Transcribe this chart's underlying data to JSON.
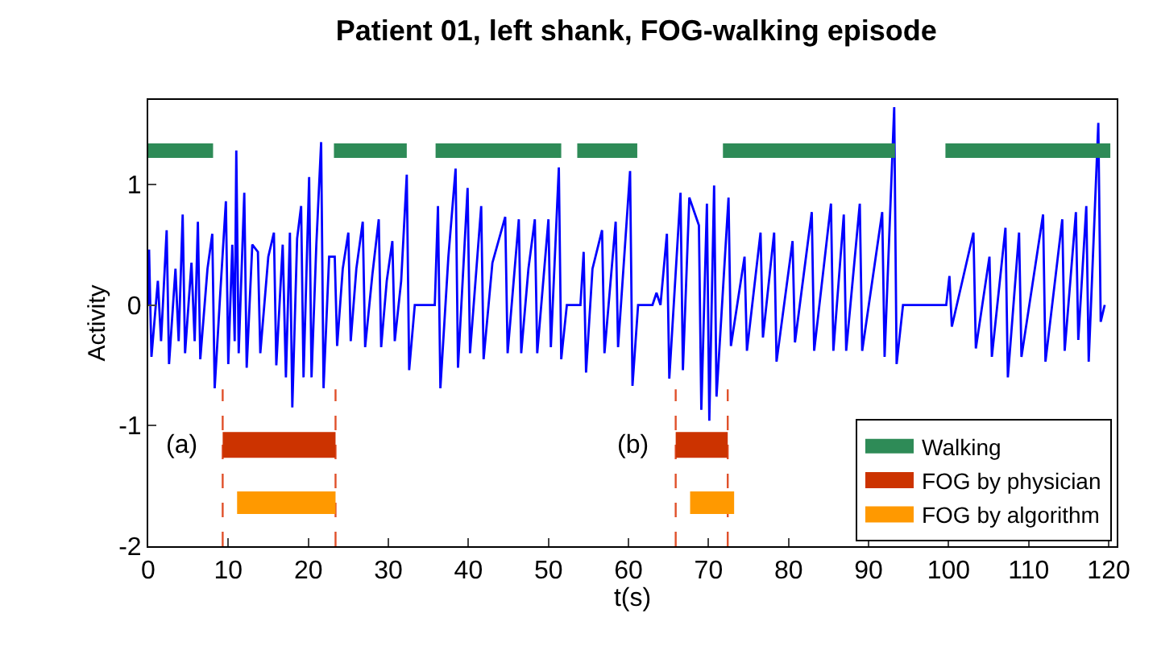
{
  "chart_data": {
    "type": "line",
    "title": "Patient 01, left shank, FOG-walking episode",
    "xlabel": "t(s)",
    "ylabel": "Activity",
    "xlim": [
      0,
      121
    ],
    "xticks": [
      0,
      10,
      20,
      30,
      40,
      50,
      60,
      70,
      80,
      90,
      100,
      110,
      120
    ],
    "ylim": [
      -2,
      1.7
    ],
    "yticks": [
      -2,
      -1,
      0,
      1
    ],
    "legend": "bottom right",
    "marker": "none",
    "annotations": [
      "(a)",
      "(b)"
    ],
    "series": [
      {
        "color": "#0000ff",
        "x": [
          0,
          0.1,
          0.4,
          1.2,
          1.6,
          2.3,
          2.6,
          3.4,
          3.8,
          4.3,
          4.6,
          5.4,
          5.8,
          6.2,
          6.5,
          7.4,
          8.0,
          8.3,
          9.0,
          9.7,
          10.0,
          10.5,
          10.8,
          11.0,
          11.3,
          12.0,
          12.3,
          13.0,
          13.7,
          14.0,
          15.0,
          15.7,
          16.0,
          16.8,
          17.2,
          17.7,
          18.0,
          18.6,
          19.1,
          19.4,
          20.1,
          20.4,
          21.0,
          21.6,
          21.9,
          22.6,
          23.3,
          23.6,
          24.3,
          25.0,
          25.3,
          26.0,
          26.8,
          27.1,
          28.0,
          28.8,
          29.1,
          29.8,
          30.5,
          30.8,
          31.6,
          32.3,
          32.6,
          33.3,
          35.8,
          36.2,
          36.5,
          37.5,
          38.4,
          38.7,
          39.9,
          40.2,
          41.6,
          41.9,
          43.0,
          44.6,
          44.9,
          46.3,
          46.6,
          47.5,
          48.3,
          48.6,
          50.0,
          50.3,
          51.3,
          51.6,
          52.3,
          54.0,
          54.4,
          54.7,
          55.5,
          56.7,
          57.0,
          58.4,
          58.7,
          60.2,
          60.5,
          61.2,
          63.0,
          63.5,
          64.0,
          64.8,
          65.1,
          66.5,
          66.8,
          67.6,
          68.8,
          69.1,
          69.8,
          70.1,
          70.7,
          71.0,
          72.5,
          72.8,
          74.5,
          74.8,
          76.5,
          76.8,
          78.2,
          78.5,
          80.5,
          80.8,
          82.9,
          83.2,
          85.3,
          85.6,
          86.9,
          87.2,
          88.9,
          89.2,
          91.7,
          92.0,
          93.2,
          93.5,
          94.3,
          99.7,
          100.1,
          100.4,
          103.1,
          103.4,
          105.1,
          105.4,
          107.1,
          107.4,
          108.8,
          109.1,
          111.8,
          112.1,
          114.2,
          114.5,
          115.9,
          116.2,
          117.2,
          117.5,
          118.7,
          119.0,
          119.5
        ],
        "values": [
          0,
          0.46,
          -0.43,
          0.2,
          -0.3,
          0.62,
          -0.49,
          0.3,
          -0.3,
          0.75,
          -0.4,
          0.35,
          -0.3,
          0.69,
          -0.45,
          0.3,
          0.59,
          -0.69,
          0.1,
          0.86,
          -0.49,
          0.5,
          -0.3,
          1.28,
          -0.4,
          0.93,
          -0.52,
          0.5,
          0.44,
          -0.4,
          0.4,
          0.6,
          -0.5,
          0.5,
          -0.6,
          0.6,
          -0.85,
          0.55,
          0.82,
          -0.6,
          1.06,
          -0.6,
          0.5,
          1.35,
          -0.69,
          0.4,
          0.4,
          -0.34,
          0.3,
          0.6,
          -0.3,
          0.3,
          0.69,
          -0.35,
          0.25,
          0.71,
          -0.35,
          0.2,
          0.53,
          -0.3,
          0.2,
          1.08,
          -0.54,
          0,
          0,
          0.82,
          -0.69,
          0.4,
          1.13,
          -0.52,
          0.97,
          -0.4,
          0.82,
          -0.45,
          0.35,
          0.73,
          -0.4,
          0.71,
          -0.4,
          0.3,
          0.71,
          -0.4,
          0.71,
          -0.35,
          1.14,
          -0.45,
          0,
          0,
          0.44,
          -0.56,
          0.3,
          0.62,
          -0.4,
          0.69,
          -0.35,
          1.11,
          -0.67,
          0,
          0,
          0.1,
          0,
          0.59,
          -0.61,
          0.93,
          -0.54,
          0.89,
          0.66,
          -0.87,
          0.84,
          -0.96,
          0.99,
          -0.76,
          0.89,
          -0.34,
          0.4,
          -0.38,
          0.6,
          -0.27,
          0.6,
          -0.47,
          0.53,
          -0.31,
          0.77,
          -0.38,
          0.84,
          -0.38,
          0.75,
          -0.38,
          0.84,
          -0.38,
          0.77,
          -0.43,
          1.64,
          -0.49,
          0,
          0,
          0.24,
          -0.18,
          0.6,
          -0.36,
          0.4,
          -0.43,
          0.64,
          -0.6,
          0.6,
          -0.43,
          0.75,
          -0.47,
          0.71,
          -0.38,
          0.77,
          -0.29,
          0.82,
          -0.47,
          1.51,
          -0.14,
          0
        ]
      },
      {
        "color": "#e0502a",
        "line_style": "dashed",
        "x": [
          9.3,
          9.3,
          null,
          23.4,
          23.4,
          null,
          65.9,
          65.9,
          null,
          72.4,
          72.4
        ],
        "values": [
          -2,
          -0.7,
          null,
          -2,
          -0.7,
          null,
          -2,
          -0.7,
          null,
          -2,
          -0.7
        ]
      },
      {
        "name": "Walking",
        "color": "#2e8b57",
        "x": [
          0,
          8.1,
          null,
          23.2,
          32.3,
          null,
          35.9,
          51.6,
          null,
          53.6,
          61.1,
          null,
          71.8,
          93.3,
          null,
          99.6,
          120.2
        ],
        "values": [
          1.28,
          1.28,
          null,
          1.28,
          1.28,
          null,
          1.28,
          1.28,
          null,
          1.28,
          1.28,
          null,
          1.28,
          1.28,
          null,
          1.28,
          1.28
        ]
      },
      {
        "name": "FOG by physician",
        "color": "#cc3300",
        "x": [
          9.3,
          23.4,
          null,
          65.9,
          72.4
        ],
        "values": [
          -1.16,
          -1.16,
          null,
          -1.16,
          -1.16
        ]
      },
      {
        "name": "FOG by algorithm",
        "color": "#ff9900",
        "x": [
          11.1,
          23.4,
          null,
          67.7,
          73.2
        ],
        "values": [
          -1.64,
          -1.64,
          null,
          -1.64,
          -1.64
        ]
      }
    ]
  }
}
